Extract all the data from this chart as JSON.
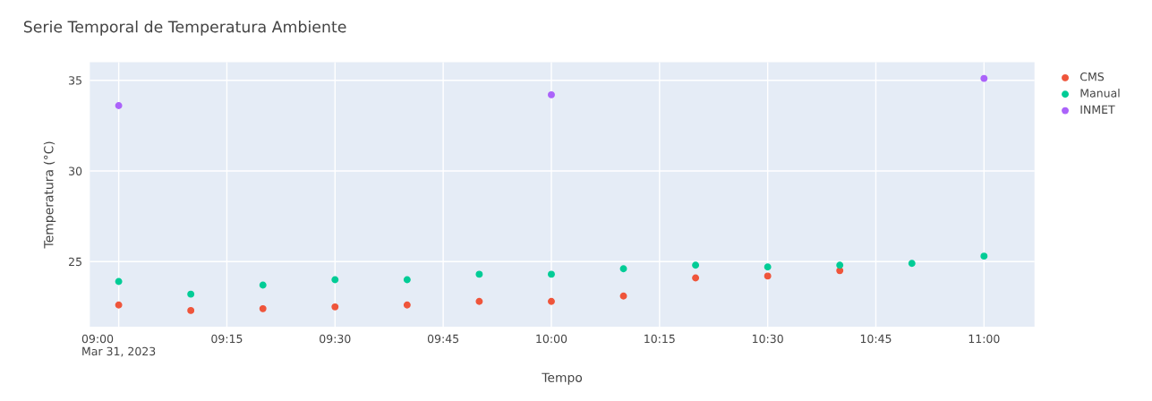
{
  "chart_data": {
    "type": "scatter",
    "title": "Serie Temporal de Temperatura Ambiente",
    "xlabel": "Tempo",
    "ylabel": "Temperatura (°C)",
    "x": [
      "2023-03-31T09:00",
      "2023-03-31T09:10",
      "2023-03-31T09:20",
      "2023-03-31T09:30",
      "2023-03-31T09:40",
      "2023-03-31T09:50",
      "2023-03-31T10:00",
      "2023-03-31T10:10",
      "2023-03-31T10:20",
      "2023-03-31T10:30",
      "2023-03-31T10:40",
      "2023-03-31T10:50",
      "2023-03-31T11:00"
    ],
    "series": [
      {
        "name": "CMS",
        "color": "#ef553b",
        "values": [
          22.6,
          22.3,
          22.4,
          22.5,
          22.6,
          22.8,
          22.8,
          23.1,
          24.1,
          24.2,
          24.5,
          null,
          null
        ]
      },
      {
        "name": "Manual",
        "color": "#00cc96",
        "values": [
          23.9,
          23.2,
          23.7,
          24.0,
          24.0,
          24.3,
          24.3,
          24.6,
          24.8,
          24.7,
          24.8,
          24.9,
          25.3
        ]
      },
      {
        "name": "INMET",
        "color": "#ab63fa",
        "x": [
          "2023-03-31T09:00",
          "2023-03-31T10:00",
          "2023-03-31T11:00"
        ],
        "values": [
          33.6,
          34.2,
          35.1
        ]
      }
    ],
    "xlim": [
      "2023-03-31T08:56",
      "2023-03-31T11:07"
    ],
    "xticks": [
      {
        "value": "2023-03-31T09:00",
        "label": "09:00\nMar 31, 2023"
      },
      {
        "value": "2023-03-31T09:15",
        "label": "09:15"
      },
      {
        "value": "2023-03-31T09:30",
        "label": "09:30"
      },
      {
        "value": "2023-03-31T09:45",
        "label": "09:45"
      },
      {
        "value": "2023-03-31T10:00",
        "label": "10:00"
      },
      {
        "value": "2023-03-31T10:15",
        "label": "10:15"
      },
      {
        "value": "2023-03-31T10:30",
        "label": "10:30"
      },
      {
        "value": "2023-03-31T10:45",
        "label": "10:45"
      },
      {
        "value": "2023-03-31T11:00",
        "label": "11:00"
      }
    ],
    "ylim": [
      21.4,
      36.0
    ],
    "yticks": [
      25,
      30,
      35
    ],
    "grid": true,
    "legend": "top right",
    "marker": "circle"
  }
}
